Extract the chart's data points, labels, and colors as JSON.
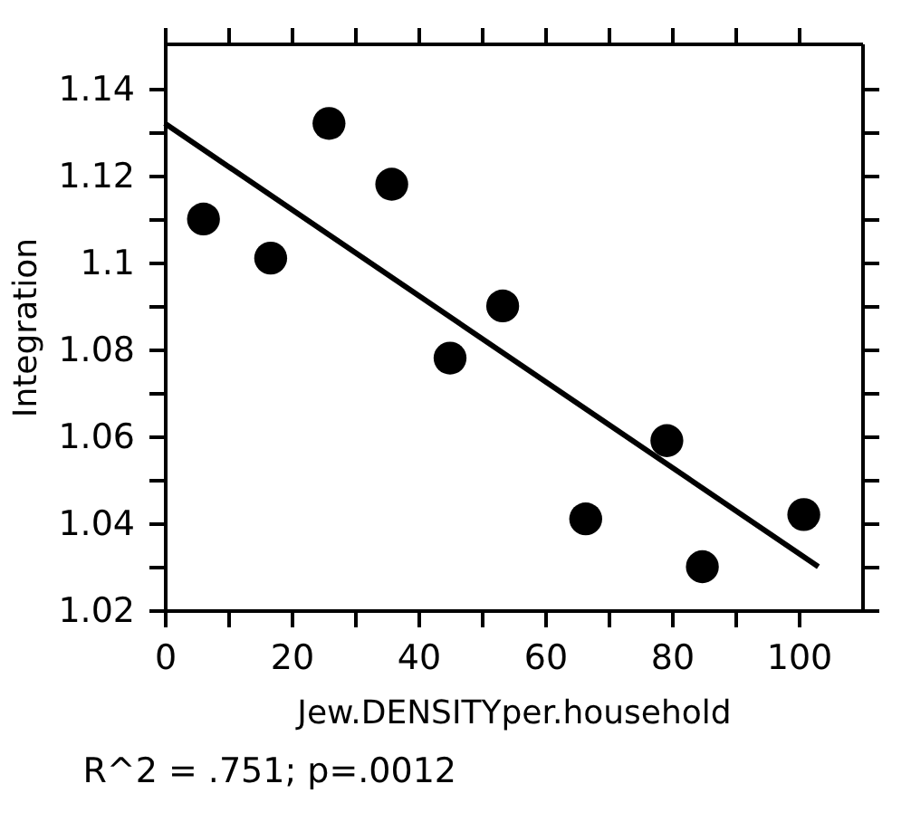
{
  "chart_data": {
    "type": "scatter",
    "xlabel": "Jew.DENSITYper.household",
    "ylabel": "Integration",
    "annotations": [
      "R^2 = .751; p=.0012"
    ],
    "xlim": [
      0,
      110
    ],
    "xticks": [
      0,
      {
        "value": 10,
        "label": null
      },
      20,
      {
        "value": 30,
        "label": null
      },
      40,
      {
        "value": 50,
        "label": null
      },
      60,
      {
        "value": 70,
        "label": null
      },
      80,
      {
        "value": 90,
        "label": null
      },
      100
    ],
    "ylim": [
      1.02,
      1.1504
    ],
    "yticks": [
      1.02,
      {
        "value": 1.03,
        "label": null
      },
      1.04,
      {
        "value": 1.05,
        "label": null
      },
      1.06,
      {
        "value": 1.07,
        "label": null
      },
      1.08,
      {
        "value": 1.09,
        "label": null
      },
      1.1,
      {
        "value": 1.11,
        "label": null
      },
      1.12,
      {
        "value": 1.13,
        "label": null
      },
      1.14
    ],
    "grid": false,
    "series": [
      {
        "color": "#000000",
        "marker": "circle",
        "x": [
          6.1,
          16.7,
          25.9,
          35.8,
          45.0,
          53.3,
          66.4,
          79.2,
          84.8,
          100.8
        ],
        "values": [
          1.11,
          1.101,
          1.132,
          1.118,
          1.078,
          1.09,
          1.041,
          1.059,
          1.03,
          1.042
        ]
      },
      {
        "type": "line",
        "color": "#000000",
        "line_style": "solid",
        "x": [
          0,
          103.1
        ],
        "values": [
          1.132,
          1.03
        ]
      }
    ]
  }
}
